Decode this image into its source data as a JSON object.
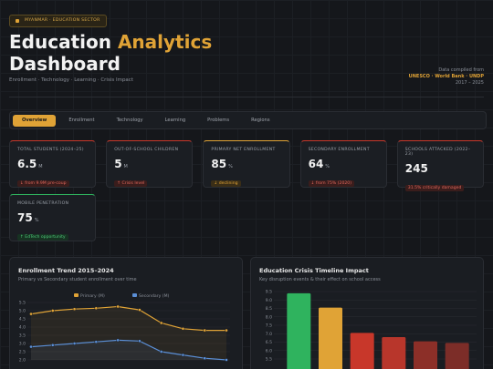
{
  "header": {
    "badge": "MYANMAR · EDUCATION SECTOR",
    "title_start": "Education",
    "title_highlight": "Analytics",
    "title_end": "Dashboard",
    "subtitle": "Enrollment · Technology · Learning · Crisis Impact",
    "source_label": "Data compiled from",
    "sources": "UNESCO · World Bank · UNDP",
    "period": "2017 – 2025"
  },
  "tabs": [
    "Overview",
    "Enrollment",
    "Technology",
    "Learning",
    "Problems",
    "Regions"
  ],
  "kpis": [
    {
      "label": "TOTAL STUDENTS (2024–25)",
      "value": 6.5,
      "unit": "M",
      "note": "↓ from 9.9M pre-coup",
      "tone": "red"
    },
    {
      "label": "OUT-OF-SCHOOL CHILDREN",
      "value": 5,
      "unit": "M",
      "note": "↑ Crisis level",
      "tone": "red"
    },
    {
      "label": "PRIMARY NET ENROLLMENT",
      "value": 85,
      "unit": "%",
      "note": "↓ declining",
      "tone": "amber"
    },
    {
      "label": "SECONDARY ENROLLMENT",
      "value": 64,
      "unit": "%",
      "note": "↓ from 75% (2020)",
      "tone": "red"
    },
    {
      "label": "SCHOOLS ATTACKED (2022–23)",
      "value": 245,
      "note": "31.5% critically damaged",
      "tone": "red"
    },
    {
      "label": "MOBILE PENETRATION",
      "value": 75,
      "unit": "%",
      "note": "↑ EdTech opportunity",
      "tone": "green"
    }
  ],
  "chart_data": [
    {
      "type": "line",
      "title": "Enrollment Trend 2015–2024",
      "subtitle": "Primary vs Secondary student enrollment over time",
      "categories": [
        null,
        null,
        null,
        null,
        null,
        null,
        null,
        null,
        null,
        null
      ],
      "series": [
        {
          "name": "Primary (M)",
          "color": "#e0a336",
          "values": [
            4.8,
            5.0,
            5.1,
            5.15,
            5.25,
            5.05,
            4.25,
            3.9,
            3.8,
            3.8
          ]
        },
        {
          "name": "Secondary (M)",
          "color": "#5b8fd6",
          "values": [
            2.8,
            2.9,
            3.0,
            3.1,
            3.2,
            3.15,
            2.5,
            2.3,
            2.1,
            2.0
          ]
        }
      ],
      "ylim": [
        2.0,
        5.5
      ],
      "yticks": [
        {
          "value": 2,
          "label": "2.0"
        },
        2.5,
        {
          "value": 3,
          "label": "3.0"
        },
        3.5,
        {
          "value": 4,
          "label": "4.0"
        },
        4.5,
        {
          "value": 5,
          "label": "5.0"
        },
        5.5
      ],
      "grid": true,
      "legend": "top"
    },
    {
      "type": "bar",
      "title": "Education Crisis Timeline Impact",
      "subtitle": "Key disruption events & their effect on school access",
      "categories": [
        null,
        null,
        null,
        null,
        null,
        null
      ],
      "values": [
        9.4,
        8.55,
        7.05,
        6.8,
        6.55,
        6.45
      ],
      "colors": [
        "#2fb35e",
        "#e0a336",
        "#c8372a",
        "#b8362b",
        "#8c2f28",
        "#7c2d28"
      ],
      "ylim": [
        5.5,
        9.5
      ],
      "yticks": [
        5.5,
        {
          "value": 6,
          "label": "6.0"
        },
        6.5,
        {
          "value": 7,
          "label": "7.0"
        },
        7.5,
        {
          "value": 8,
          "label": "8.0"
        },
        8.5,
        {
          "value": 9,
          "label": "9.0"
        },
        9.5
      ],
      "grid": true
    }
  ]
}
